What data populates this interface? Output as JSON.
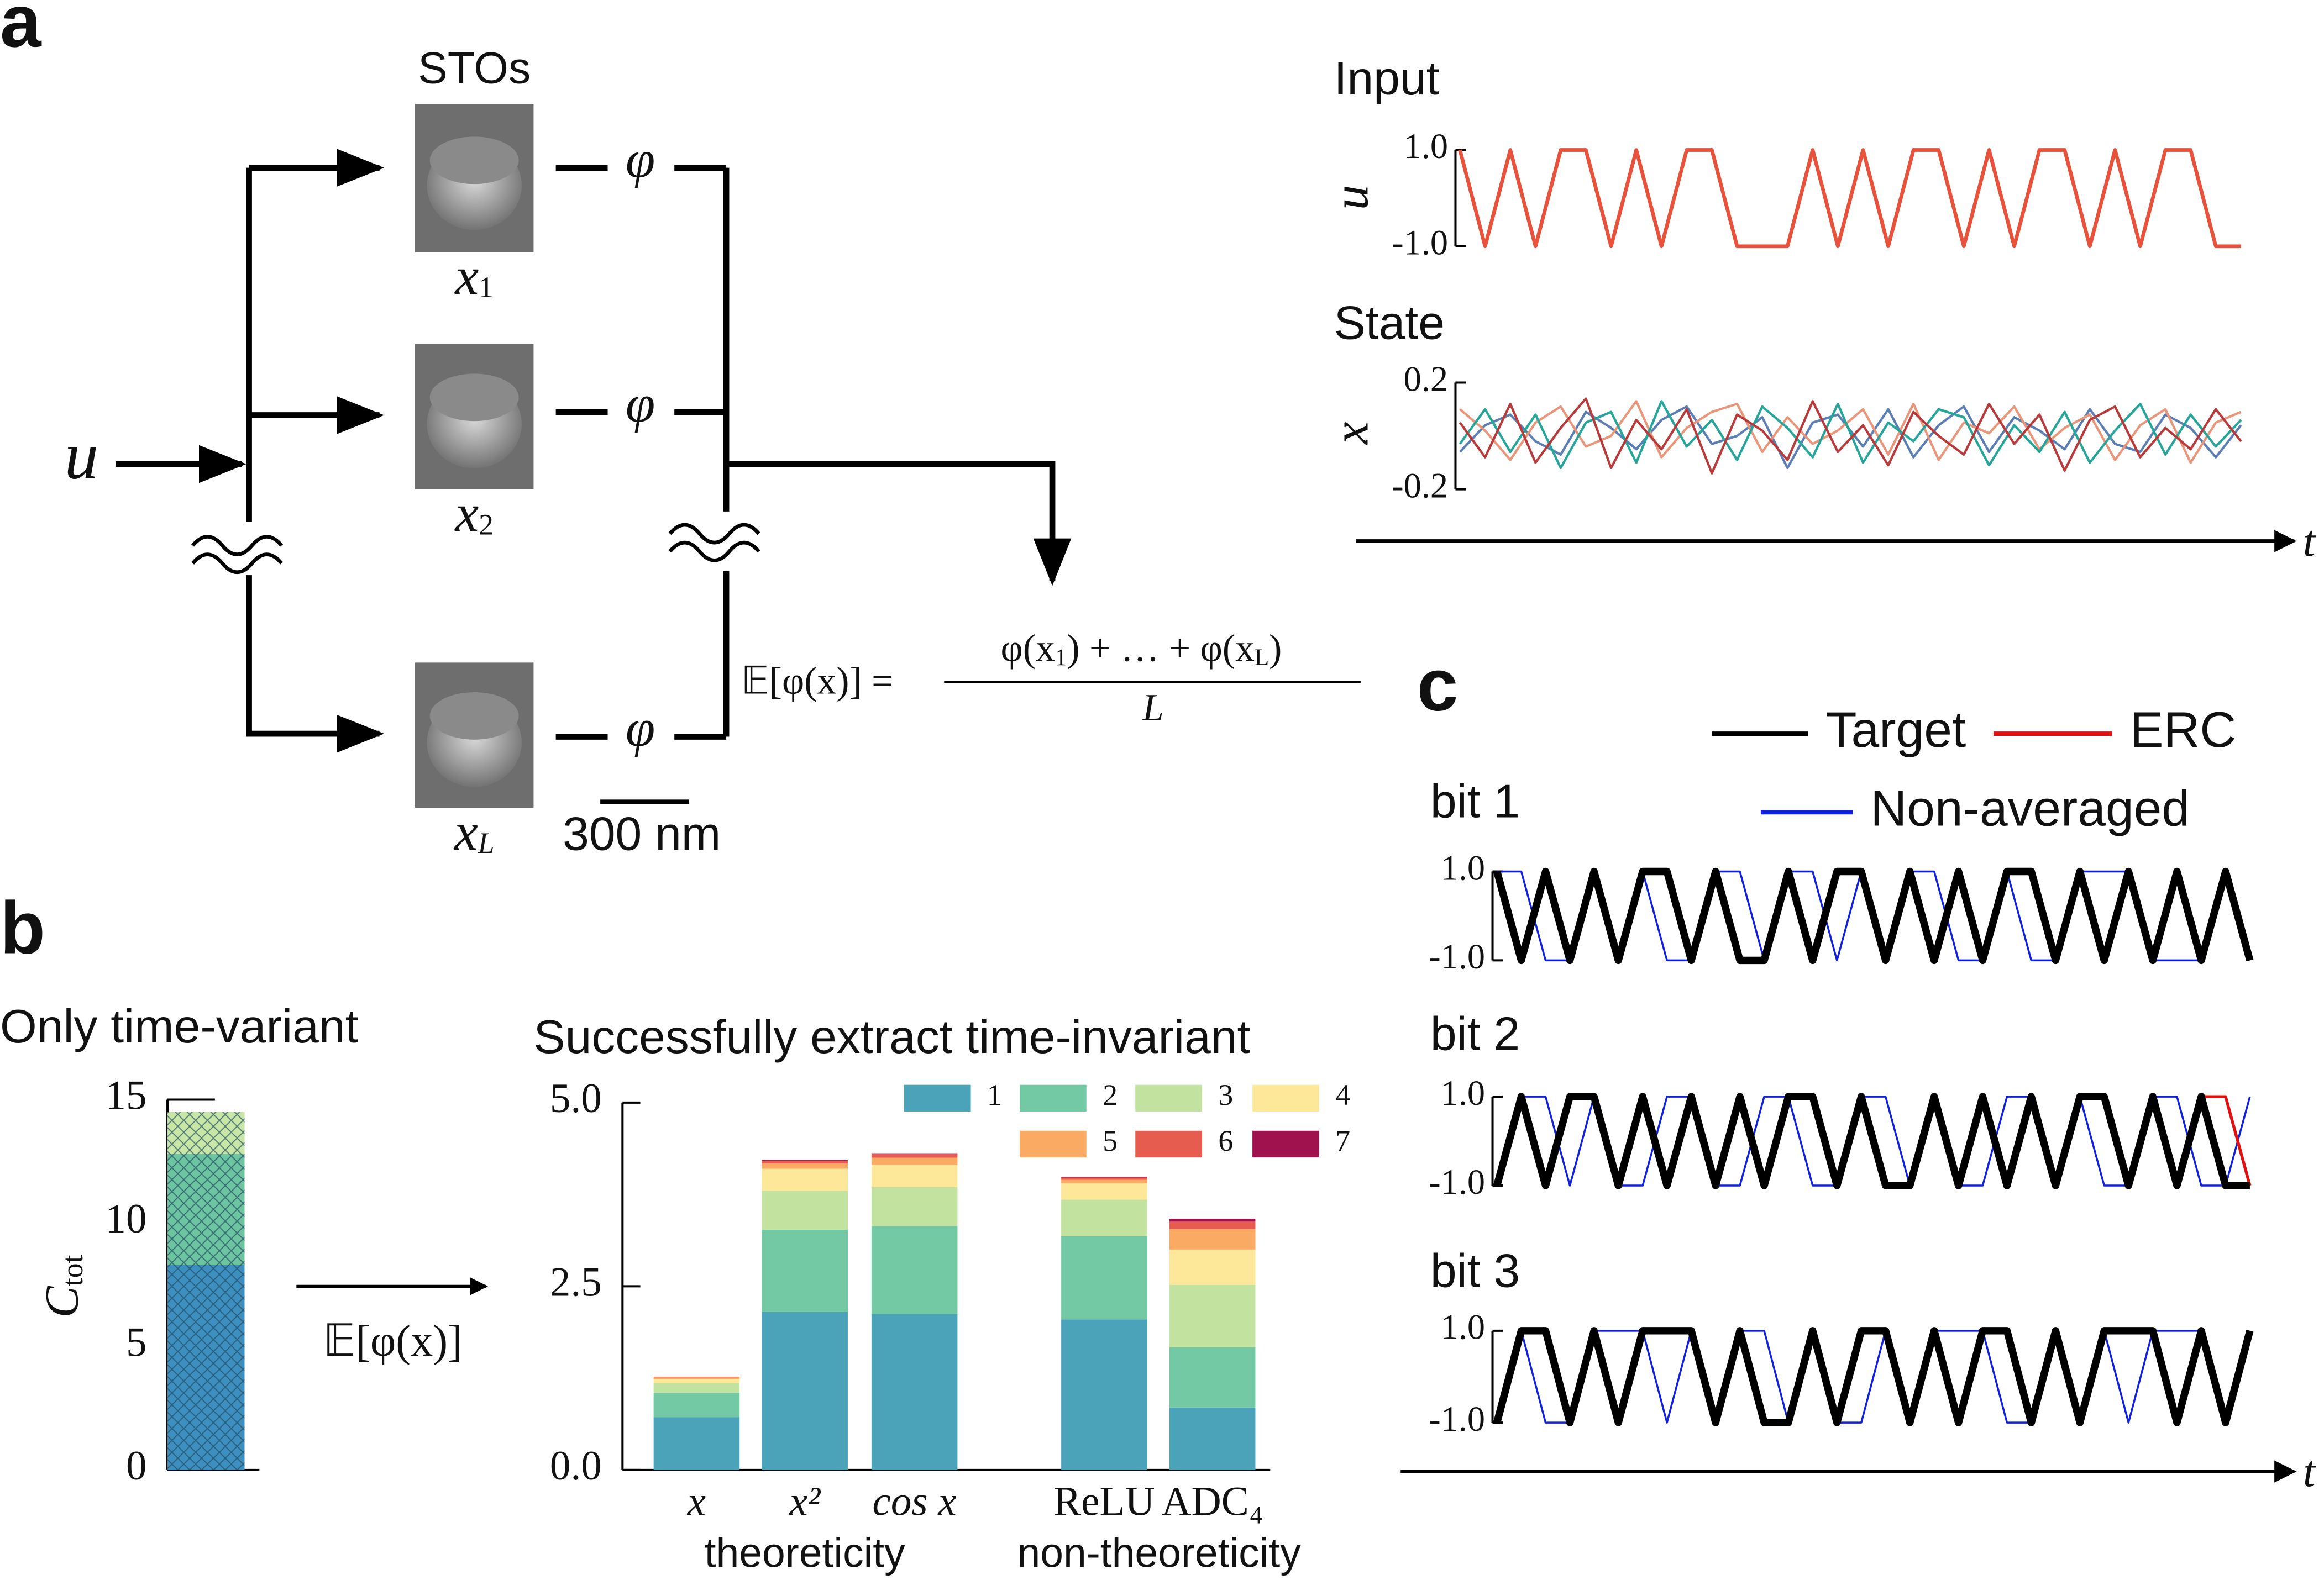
{
  "panel_labels": [
    "a",
    "b",
    "c"
  ],
  "time_axis_label": "t",
  "diagram": {
    "input": "u",
    "devices_label": "STOs",
    "outputs": [
      {
        "symbol": "x",
        "index": "1"
      },
      {
        "symbol": "x",
        "index": "2"
      },
      {
        "symbol": "x",
        "index": "L"
      }
    ],
    "function": "φ",
    "scale_bar": "300 nm",
    "equation_lhs": "𝔼[φ(x)] =",
    "equation_numerator": [
      "φ(x",
      "1",
      ")  + … + φ(x",
      "L",
      ")"
    ],
    "equation_denominator": "L",
    "arrow_label": "𝔼[φ(x)]"
  },
  "chart_data": [
    {
      "type": "line",
      "title": "Input",
      "y_label": "u",
      "ylim": [
        -1,
        1
      ],
      "yticks": [
        {
          "value": 1,
          "label": "1.0"
        },
        {
          "value": -1,
          "label": "-1.0"
        }
      ],
      "series": [
        {
          "color": "#e8513a",
          "values": [
            1,
            -1,
            1,
            -1,
            1,
            1,
            -1,
            1,
            -1,
            1,
            1,
            -1,
            -1,
            -1,
            1,
            -1,
            1,
            -1,
            1,
            1,
            -1,
            1,
            -1,
            1,
            1,
            -1,
            1,
            -1,
            1,
            1,
            -1,
            -1
          ]
        }
      ]
    },
    {
      "type": "line",
      "title": "State",
      "y_label": "x",
      "ylim": [
        -0.2,
        0.2
      ],
      "yticks": [
        0.2,
        -0.2
      ],
      "series": [
        {
          "color": "#b83a3a",
          "values": [
            0.05,
            -0.08,
            0.12,
            -0.1,
            0.03,
            0.14,
            -0.12,
            0.06,
            -0.05,
            0.1,
            -0.14,
            0.08,
            0.02,
            -0.09,
            0.13,
            -0.06,
            0.04,
            -0.11,
            0.09,
            0.0,
            -0.07,
            0.12,
            -0.03,
            0.08,
            -0.13,
            0.06,
            0.11,
            -0.08,
            0.03,
            -0.05,
            0.1,
            -0.02
          ]
        },
        {
          "color": "#26a69a",
          "values": [
            -0.03,
            0.1,
            -0.06,
            0.08,
            -0.12,
            0.05,
            0.09,
            -0.1,
            0.13,
            -0.04,
            0.06,
            -0.09,
            0.11,
            0.03,
            -0.08,
            0.12,
            -0.1,
            0.05,
            -0.02,
            0.1,
            0.07,
            -0.11,
            0.04,
            -0.06,
            0.09,
            -0.1,
            0.02,
            0.12,
            -0.07,
            0.08,
            -0.04,
            0.06
          ]
        },
        {
          "color": "#e9967a",
          "values": [
            0.1,
            0.02,
            -0.09,
            0.05,
            0.11,
            -0.04,
            0.0,
            0.13,
            -0.08,
            0.03,
            0.09,
            0.12,
            -0.06,
            0.07,
            -0.03,
            0.02,
            0.1,
            -0.07,
            0.12,
            -0.09,
            0.05,
            0.01,
            0.11,
            -0.05,
            0.03,
            0.08,
            -0.09,
            0.04,
            0.1,
            -0.1,
            0.05,
            0.09
          ]
        },
        {
          "color": "#5b7fb5",
          "values": [
            -0.06,
            0.04,
            0.08,
            -0.02,
            -0.07,
            0.09,
            0.03,
            -0.05,
            0.06,
            0.11,
            -0.03,
            0.0,
            0.07,
            -0.12,
            0.05,
            0.08,
            -0.04,
            0.1,
            -0.08,
            0.04,
            0.11,
            -0.06,
            0.07,
            0.02,
            -0.05,
            0.1,
            -0.03,
            -0.06,
            0.08,
            0.03,
            -0.08,
            0.04
          ]
        }
      ]
    },
    {
      "type": "line",
      "title": "bit 1",
      "ylim": [
        -1,
        1
      ],
      "yticks": [
        {
          "value": 1,
          "label": "1.0"
        },
        {
          "value": -1,
          "label": "-1.0"
        }
      ],
      "series": [
        {
          "name": "Target",
          "color": "#000000",
          "values": [
            1,
            -1,
            1,
            -1,
            1,
            -1,
            1,
            1,
            -1,
            1,
            -1,
            -1,
            1,
            -1,
            1,
            1,
            -1,
            1,
            -1,
            1,
            -1,
            1,
            1,
            -1,
            1,
            -1,
            1,
            -1,
            1,
            -1,
            1,
            -1
          ]
        },
        {
          "name": "ERC",
          "color": "#e01010",
          "values": [
            1,
            -1,
            1,
            -1,
            1,
            -1,
            1,
            1,
            -1,
            1,
            -1,
            -1,
            1,
            -1,
            1,
            1,
            -1,
            1,
            -1,
            1,
            -1,
            1,
            1,
            -1,
            1,
            -1,
            1,
            -1,
            1,
            -1,
            1,
            -1
          ]
        },
        {
          "name": "Non-averaged",
          "color": "#1020e0",
          "values": [
            1,
            1,
            -1,
            -1,
            1,
            -1,
            1,
            -1,
            -1,
            1,
            1,
            -1,
            1,
            1,
            -1,
            1,
            -1,
            1,
            1,
            -1,
            -1,
            1,
            -1,
            -1,
            1,
            1,
            1,
            -1,
            -1,
            -1,
            1,
            -1
          ]
        }
      ]
    },
    {
      "type": "line",
      "title": "bit 2",
      "ylim": [
        -1,
        1
      ],
      "yticks": [
        {
          "value": 1,
          "label": "1.0"
        },
        {
          "value": -1,
          "label": "-1.0"
        }
      ],
      "series": [
        {
          "color": "#000000",
          "values": [
            -1,
            1,
            -1,
            1,
            1,
            -1,
            1,
            -1,
            1,
            -1,
            1,
            -1,
            1,
            1,
            -1,
            1,
            -1,
            -1,
            1,
            -1,
            1,
            -1,
            1,
            -1,
            1,
            1,
            -1,
            1,
            -1,
            1,
            -1,
            -1
          ]
        },
        {
          "color": "#e01010",
          "values": [
            -1,
            1,
            -1,
            1,
            1,
            -1,
            1,
            -1,
            1,
            -1,
            1,
            -1,
            1,
            1,
            -1,
            1,
            -1,
            -1,
            1,
            -1,
            1,
            -1,
            1,
            -1,
            1,
            1,
            -1,
            1,
            -1,
            1,
            1,
            -1
          ]
        },
        {
          "color": "#1020e0",
          "values": [
            -1,
            1,
            1,
            -1,
            1,
            -1,
            -1,
            1,
            1,
            -1,
            -1,
            1,
            1,
            -1,
            -1,
            1,
            1,
            -1,
            1,
            -1,
            -1,
            1,
            1,
            -1,
            1,
            -1,
            -1,
            1,
            1,
            -1,
            -1,
            1
          ]
        }
      ]
    },
    {
      "type": "line",
      "title": "bit 3",
      "ylim": [
        -1,
        1
      ],
      "yticks": [
        {
          "value": 1,
          "label": "1.0"
        },
        {
          "value": -1,
          "label": "-1.0"
        }
      ],
      "series": [
        {
          "color": "#000000",
          "values": [
            -1,
            1,
            1,
            -1,
            1,
            -1,
            1,
            1,
            1,
            -1,
            1,
            -1,
            -1,
            1,
            -1,
            1,
            1,
            -1,
            1,
            -1,
            1,
            1,
            -1,
            1,
            -1,
            1,
            1,
            1,
            -1,
            1,
            -1,
            1
          ]
        },
        {
          "color": "#e01010",
          "values": [
            -1,
            1,
            1,
            -1,
            1,
            -1,
            1,
            1,
            1,
            -1,
            1,
            -1,
            -1,
            1,
            -1,
            1,
            1,
            -1,
            1,
            -1,
            1,
            1,
            -1,
            1,
            -1,
            1,
            1,
            1,
            -1,
            1,
            -1,
            1
          ]
        },
        {
          "color": "#1020e0",
          "values": [
            -1,
            1,
            -1,
            -1,
            1,
            1,
            1,
            -1,
            1,
            -1,
            1,
            1,
            -1,
            1,
            -1,
            -1,
            1,
            -1,
            1,
            1,
            1,
            -1,
            -1,
            1,
            -1,
            1,
            -1,
            1,
            1,
            1,
            -1,
            1
          ]
        }
      ]
    },
    {
      "type": "bar",
      "stacked": true,
      "hatch": true,
      "title": "Only time-variant",
      "y_label": [
        "C",
        "tot"
      ],
      "categories": [
        null
      ],
      "ylim": [
        0,
        15
      ],
      "yticks": [
        0,
        5,
        10,
        15
      ],
      "series": [
        {
          "color": "#3d8fc0",
          "values": [
            8.3
          ]
        },
        {
          "color": "#6cc4a0",
          "values": [
            4.5
          ]
        },
        {
          "color": "#c8e6a6",
          "values": [
            1.7
          ]
        }
      ]
    },
    {
      "type": "bar",
      "stacked": true,
      "title": "Successfully extract time-invariant",
      "categories": [
        "x",
        "x²",
        "cos x",
        "ReLU",
        "ADC₄"
      ],
      "group_labels": [
        "theoreticity",
        "non-theoreticity"
      ],
      "ylim": [
        0,
        5
      ],
      "yticks": [
        {
          "value": 0,
          "label": "0.0"
        },
        {
          "value": 2.5,
          "label": "2.5"
        },
        {
          "value": 5,
          "label": "5.0"
        }
      ],
      "series": [
        {
          "name": "1",
          "color": "#4aa3b8",
          "values": [
            0.72,
            2.15,
            2.12,
            2.05,
            0.85
          ]
        },
        {
          "name": "2",
          "color": "#72c9a3",
          "values": [
            0.33,
            1.12,
            1.2,
            1.13,
            0.82
          ]
        },
        {
          "name": "3",
          "color": "#c2e3a0",
          "values": [
            0.13,
            0.53,
            0.53,
            0.5,
            0.85
          ]
        },
        {
          "name": "4",
          "color": "#fde89a",
          "values": [
            0.06,
            0.3,
            0.3,
            0.22,
            0.48
          ]
        },
        {
          "name": "5",
          "color": "#fbaa64",
          "values": [
            0.02,
            0.07,
            0.1,
            0.05,
            0.28
          ]
        },
        {
          "name": "6",
          "color": "#e65d4f",
          "values": [
            0.01,
            0.04,
            0.05,
            0.03,
            0.1
          ]
        },
        {
          "name": "7",
          "color": "#a0124e",
          "values": [
            0,
            0.01,
            0.01,
            0.01,
            0.04
          ]
        }
      ]
    }
  ]
}
